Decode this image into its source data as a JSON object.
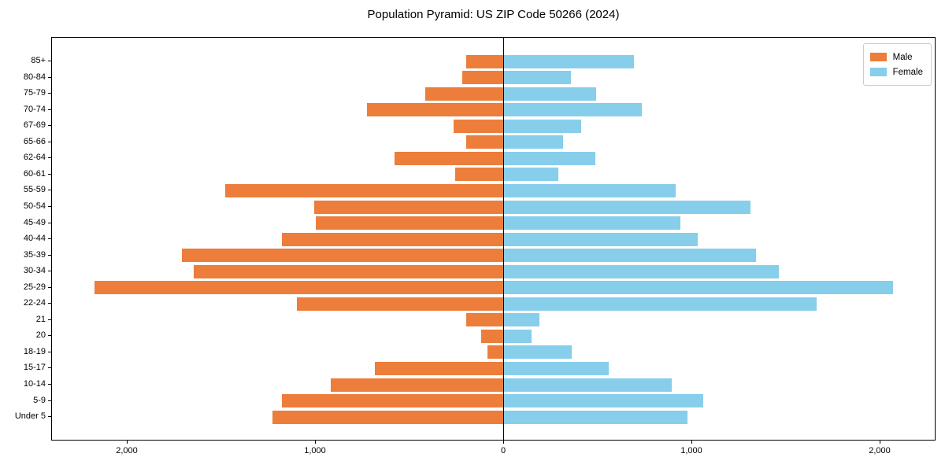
{
  "title": "Population Pyramid: US ZIP Code 50266 (2024)",
  "legend": {
    "male_label": "Male",
    "female_label": "Female"
  },
  "colors": {
    "male": "#ed7d3a",
    "female": "#87ceeb",
    "axis": "#000000",
    "legend_border": "#cccccc",
    "background": "#ffffff"
  },
  "chart_data": {
    "type": "bar",
    "subtype": "population-pyramid",
    "orientation": "horizontal",
    "title": "Population Pyramid: US ZIP Code 50266 (2024)",
    "xlabel": "",
    "ylabel": "",
    "grid": false,
    "legend_position": "upper right",
    "xlim": [
      -2400,
      2300
    ],
    "categories_top_to_bottom": [
      "85+",
      "80-84",
      "75-79",
      "70-74",
      "67-69",
      "65-66",
      "62-64",
      "60-61",
      "55-59",
      "50-54",
      "45-49",
      "40-44",
      "35-39",
      "30-34",
      "25-29",
      "22-24",
      "21",
      "20",
      "18-19",
      "15-17",
      "10-14",
      "5-9",
      "Under 5"
    ],
    "series": [
      {
        "name": "Male",
        "side": "left",
        "color": "#ed7d3a",
        "values": [
          200,
          220,
          420,
          730,
          270,
          200,
          580,
          260,
          1480,
          1010,
          1000,
          1180,
          1710,
          1650,
          2175,
          1100,
          200,
          120,
          90,
          685,
          920,
          1180,
          1230
        ]
      },
      {
        "name": "Female",
        "side": "right",
        "color": "#87ceeb",
        "values": [
          690,
          355,
          490,
          730,
          410,
          315,
          485,
          290,
          910,
          1310,
          935,
          1030,
          1340,
          1460,
          2065,
          1660,
          190,
          145,
          360,
          555,
          890,
          1060,
          975
        ]
      }
    ],
    "x_ticks": [
      {
        "value": -2000,
        "label": "2,000"
      },
      {
        "value": -1000,
        "label": "1,000"
      },
      {
        "value": 0,
        "label": "0"
      },
      {
        "value": 1000,
        "label": "1,000"
      },
      {
        "value": 2000,
        "label": "2,000"
      }
    ]
  }
}
